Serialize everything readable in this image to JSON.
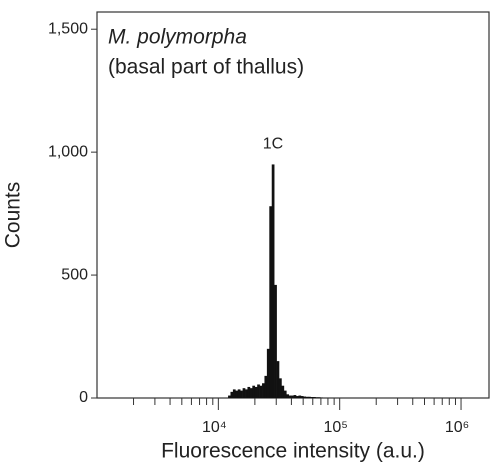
{
  "chart_data": {
    "type": "histogram",
    "title": "M. polymorpha",
    "subtitle": "(basal part of thallus)",
    "annotation": "1C",
    "xlabel": "Fluorescence intensity (a.u.)",
    "ylabel": "Counts",
    "xscale": "log",
    "color": "#111111",
    "xlim": [
      1000,
      1700000
    ],
    "ylim": [
      0,
      1570
    ],
    "xticks": [
      {
        "value": 10000,
        "label": "10⁴"
      },
      {
        "value": 100000,
        "label": "10⁵"
      },
      {
        "value": 1000000,
        "label": "10⁶"
      }
    ],
    "xminor_ticks": [
      2000,
      3000,
      4000,
      5000,
      6000,
      7000,
      8000,
      9000,
      20000,
      30000,
      40000,
      50000,
      60000,
      70000,
      80000,
      90000,
      200000,
      300000,
      400000,
      500000,
      600000,
      700000,
      800000,
      900000
    ],
    "yticks": [
      0,
      500,
      {
        "value": 1000,
        "label": "1,000"
      },
      {
        "value": 1500,
        "label": "1,500"
      }
    ],
    "bins": [
      12023,
      12589,
      13183,
      13804,
      14454,
      15136,
      15849,
      16596,
      17378,
      18197,
      19055,
      19953,
      20893,
      21878,
      22909,
      23988,
      25119,
      26303,
      27542,
      28840,
      30200,
      31623,
      33113,
      34674,
      36308,
      38019,
      39811,
      41687,
      43652,
      45709,
      47863,
      50119,
      52481,
      54954,
      57544,
      60256,
      63096,
      66069,
      69183,
      72444
    ],
    "values": [
      10,
      25,
      35,
      30,
      35,
      30,
      40,
      35,
      45,
      40,
      50,
      45,
      55,
      50,
      60,
      90,
      200,
      780,
      950,
      460,
      150,
      80,
      50,
      30,
      15,
      10,
      10,
      12,
      8,
      10,
      8,
      6,
      5,
      5,
      4,
      4,
      3,
      3,
      2
    ]
  }
}
